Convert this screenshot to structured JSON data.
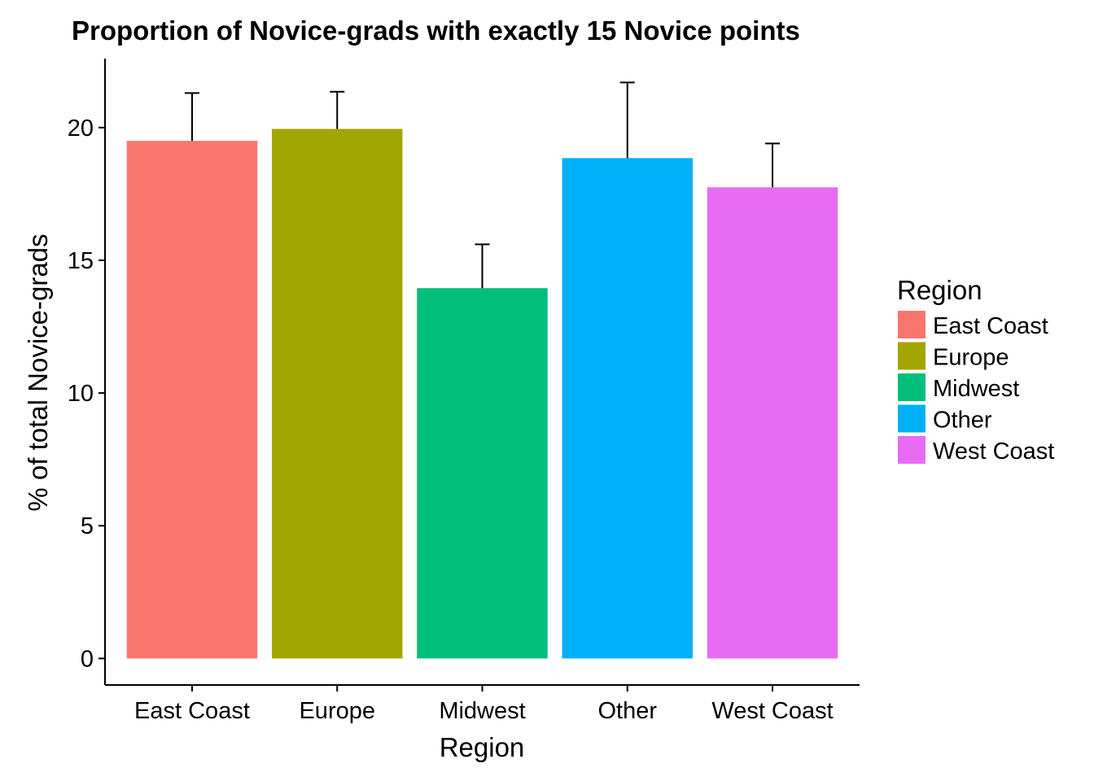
{
  "chart_data": {
    "type": "bar",
    "title": "Proportion of Novice-grads with exactly 15 Novice points",
    "xlabel": "Region",
    "ylabel": "% of total Novice-grads",
    "categories": [
      "East Coast",
      "Europe",
      "Midwest",
      "Other",
      "West Coast"
    ],
    "values": [
      19.5,
      19.95,
      13.95,
      18.85,
      17.75
    ],
    "error_upper": [
      21.3,
      21.35,
      15.6,
      21.7,
      19.4
    ],
    "colors": [
      "#F8766D",
      "#A3A500",
      "#00BF7D",
      "#00B0F6",
      "#E76BF3"
    ],
    "ylim": [
      -1,
      22.6
    ],
    "yticks": [
      0,
      5,
      10,
      15,
      20
    ],
    "grid": false,
    "legend": {
      "title": "Region",
      "position": "right",
      "entries": [
        "East Coast",
        "Europe",
        "Midwest",
        "Other",
        "West Coast"
      ]
    }
  }
}
